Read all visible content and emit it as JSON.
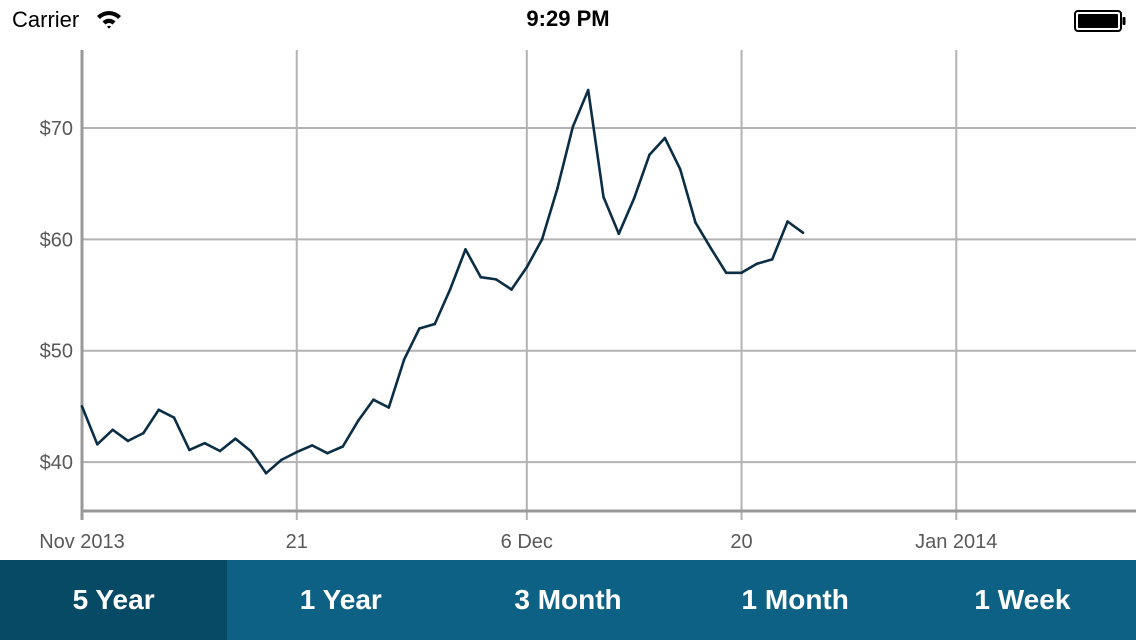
{
  "status_bar": {
    "carrier": "Carrier",
    "time": "9:29 PM",
    "wifi_icon": "wifi-icon",
    "battery_icon": "battery-icon"
  },
  "colors": {
    "line": "#0b2e45",
    "grid": "#b3b3b3",
    "axis": "#999999",
    "tab_bg": "#0d6184",
    "tab_active_bg": "#074a66",
    "tick_text": "#595959"
  },
  "tabs": [
    {
      "label": "5 Year",
      "active": true
    },
    {
      "label": "1 Year",
      "active": false
    },
    {
      "label": "3 Month",
      "active": false
    },
    {
      "label": "1 Month",
      "active": false
    },
    {
      "label": "1 Week",
      "active": false
    }
  ],
  "chart_data": {
    "type": "line",
    "title": "",
    "xlabel": "",
    "ylabel": "",
    "grid": true,
    "xlim": [
      "2013-11-07",
      "2014-01-14"
    ],
    "ylim": [
      35.7,
      77
    ],
    "y_ticks": [
      {
        "value": 40,
        "label": "$40"
      },
      {
        "value": 50,
        "label": "$50"
      },
      {
        "value": 60,
        "label": "$60"
      },
      {
        "value": 70,
        "label": "$70"
      }
    ],
    "x_ticks": [
      {
        "date": "2013-11-07",
        "label": "Nov 2013"
      },
      {
        "date": "2013-11-21",
        "label": "21"
      },
      {
        "date": "2013-12-06",
        "label": "6 Dec"
      },
      {
        "date": "2013-12-20",
        "label": "20"
      },
      {
        "date": "2014-01-03",
        "label": "Jan 2014"
      }
    ],
    "series": [
      {
        "points": [
          [
            "2013-11-07",
            45.0
          ],
          [
            "2013-11-08",
            41.6
          ],
          [
            "2013-11-09",
            42.9
          ],
          [
            "2013-11-10",
            41.9
          ],
          [
            "2013-11-11",
            42.6
          ],
          [
            "2013-11-12",
            44.7
          ],
          [
            "2013-11-13",
            44.0
          ],
          [
            "2013-11-14",
            41.1
          ],
          [
            "2013-11-15",
            41.7
          ],
          [
            "2013-11-16",
            41.0
          ],
          [
            "2013-11-17",
            42.1
          ],
          [
            "2013-11-18",
            41.0
          ],
          [
            "2013-11-19",
            39.0
          ],
          [
            "2013-11-20",
            40.2
          ],
          [
            "2013-11-21",
            40.9
          ],
          [
            "2013-11-22",
            41.5
          ],
          [
            "2013-11-23",
            40.8
          ],
          [
            "2013-11-24",
            41.4
          ],
          [
            "2013-11-25",
            43.7
          ],
          [
            "2013-11-26",
            45.6
          ],
          [
            "2013-11-27",
            44.9
          ],
          [
            "2013-11-28",
            49.2
          ],
          [
            "2013-11-29",
            52.0
          ],
          [
            "2013-11-30",
            52.4
          ],
          [
            "2013-12-01",
            55.5
          ],
          [
            "2013-12-02",
            59.1
          ],
          [
            "2013-12-03",
            56.6
          ],
          [
            "2013-12-04",
            56.4
          ],
          [
            "2013-12-05",
            55.5
          ],
          [
            "2013-12-06",
            57.5
          ],
          [
            "2013-12-07",
            60.0
          ],
          [
            "2013-12-08",
            64.6
          ],
          [
            "2013-12-09",
            70.1
          ],
          [
            "2013-12-10",
            73.4
          ],
          [
            "2013-12-11",
            63.8
          ],
          [
            "2013-12-12",
            60.5
          ],
          [
            "2013-12-13",
            63.7
          ],
          [
            "2013-12-14",
            67.6
          ],
          [
            "2013-12-15",
            69.1
          ],
          [
            "2013-12-16",
            66.3
          ],
          [
            "2013-12-17",
            61.5
          ],
          [
            "2013-12-18",
            59.2
          ],
          [
            "2013-12-19",
            57.0
          ],
          [
            "2013-12-20",
            57.0
          ],
          [
            "2013-12-21",
            57.8
          ],
          [
            "2013-12-22",
            58.2
          ],
          [
            "2013-12-23",
            61.6
          ],
          [
            "2013-12-24",
            60.6
          ]
        ]
      }
    ]
  }
}
